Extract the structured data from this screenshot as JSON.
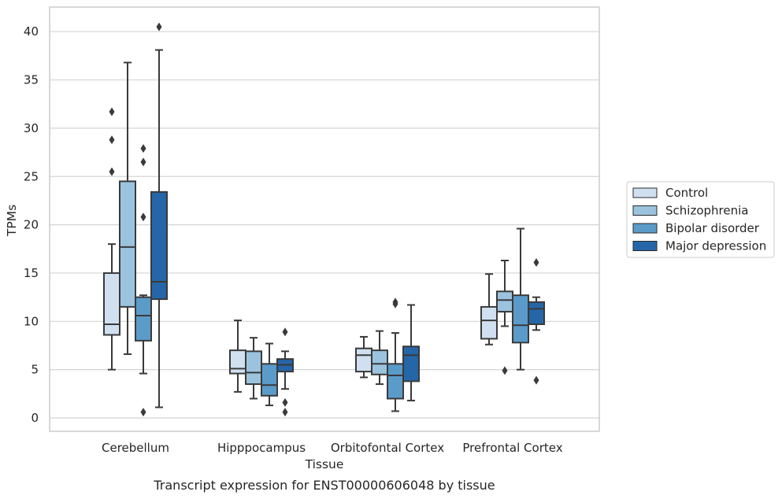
{
  "chart_data": {
    "type": "box",
    "title": "",
    "caption": "Transcript expression for ENST00000606048 by tissue",
    "xlabel": "Tissue",
    "ylabel": "TPMs",
    "ylim": [
      -1.4,
      42.5
    ],
    "yticks": [
      0,
      5,
      10,
      15,
      20,
      25,
      30,
      35,
      40
    ],
    "grid": "horizontal",
    "legend_position": "right",
    "categories": [
      "Cerebellum",
      "Hipppocampus",
      "Orbitofontal Cortex",
      "Prefrontal Cortex"
    ],
    "series": [
      {
        "name": "Control",
        "color": "#d0e0f0",
        "boxes": [
          {
            "whisker_low": 5.0,
            "q1": 8.6,
            "median": 9.7,
            "q3": 15.0,
            "whisker_high": 18.0,
            "outliers": [
              25.5,
              28.8,
              31.7
            ]
          },
          {
            "whisker_low": 2.7,
            "q1": 4.6,
            "median": 5.1,
            "q3": 7.0,
            "whisker_high": 10.1,
            "outliers": []
          },
          {
            "whisker_low": 4.2,
            "q1": 4.8,
            "median": 6.5,
            "q3": 7.2,
            "whisker_high": 8.4,
            "outliers": []
          },
          {
            "whisker_low": 7.6,
            "q1": 8.2,
            "median": 10.1,
            "q3": 11.5,
            "whisker_high": 14.9,
            "outliers": []
          }
        ]
      },
      {
        "name": "Schizophrenia",
        "color": "#9bc3de",
        "boxes": [
          {
            "whisker_low": 6.6,
            "q1": 11.5,
            "median": 17.7,
            "q3": 24.5,
            "whisker_high": 36.8,
            "outliers": []
          },
          {
            "whisker_low": 2.0,
            "q1": 3.5,
            "median": 4.7,
            "q3": 6.9,
            "whisker_high": 8.3,
            "outliers": []
          },
          {
            "whisker_low": 3.5,
            "q1": 4.5,
            "median": 5.6,
            "q3": 7.0,
            "whisker_high": 9.0,
            "outliers": []
          },
          {
            "whisker_low": 9.5,
            "q1": 11.0,
            "median": 12.2,
            "q3": 13.1,
            "whisker_high": 16.3,
            "outliers": [
              4.9
            ]
          }
        ]
      },
      {
        "name": "Bipolar disorder",
        "color": "#5b9bc9",
        "boxes": [
          {
            "whisker_low": 4.6,
            "q1": 8.0,
            "median": 10.6,
            "q3": 12.5,
            "whisker_high": 12.7,
            "outliers": [
              0.6,
              20.8,
              26.5,
              27.9
            ]
          },
          {
            "whisker_low": 1.3,
            "q1": 2.3,
            "median": 3.4,
            "q3": 5.6,
            "whisker_high": 7.7,
            "outliers": []
          },
          {
            "whisker_low": 0.7,
            "q1": 2.0,
            "median": 4.4,
            "q3": 5.6,
            "whisker_high": 8.8,
            "outliers": [
              11.8,
              12.0
            ]
          },
          {
            "whisker_low": 5.0,
            "q1": 7.8,
            "median": 9.6,
            "q3": 12.7,
            "whisker_high": 19.6,
            "outliers": []
          }
        ]
      },
      {
        "name": "Major depression",
        "color": "#2566a8",
        "boxes": [
          {
            "whisker_low": 1.1,
            "q1": 12.3,
            "median": 14.1,
            "q3": 23.4,
            "whisker_high": 38.1,
            "outliers": [
              40.5
            ]
          },
          {
            "whisker_low": 3.0,
            "q1": 4.8,
            "median": 5.5,
            "q3": 6.1,
            "whisker_high": 6.9,
            "outliers": [
              0.6,
              1.6,
              8.9
            ]
          },
          {
            "whisker_low": 1.8,
            "q1": 3.8,
            "median": 6.5,
            "q3": 7.4,
            "whisker_high": 11.7,
            "outliers": []
          },
          {
            "whisker_low": 9.1,
            "q1": 9.7,
            "median": 11.3,
            "q3": 12.0,
            "whisker_high": 12.5,
            "outliers": [
              3.9,
              16.1
            ]
          }
        ]
      }
    ]
  }
}
